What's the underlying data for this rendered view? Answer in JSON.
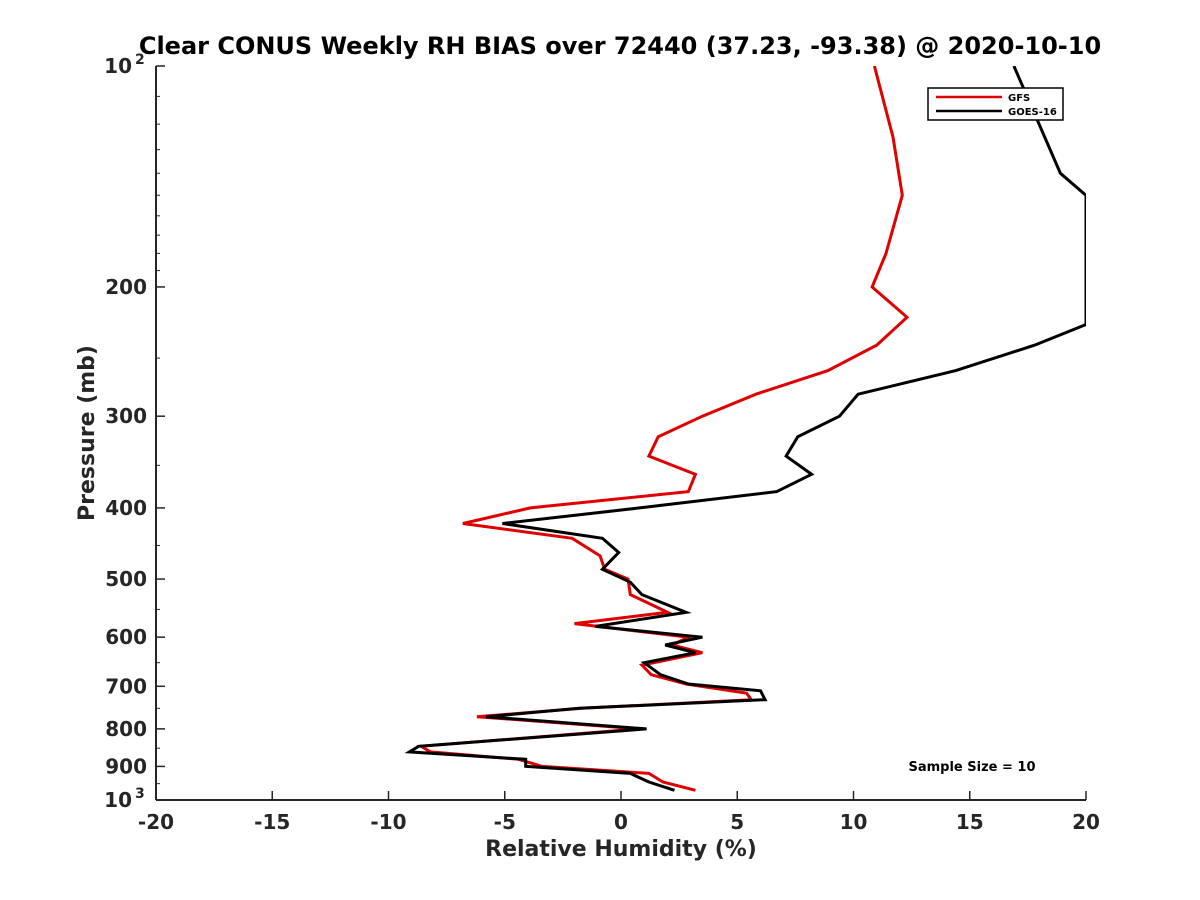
{
  "chart_data": {
    "type": "line",
    "title": "Clear CONUS Weekly RH BIAS over 72440 (37.23, -93.38) @ 2020-10-10",
    "xlabel": "Relative Humidity (%)",
    "ylabel": "Pressure (mb)",
    "xlim": [
      -20,
      20
    ],
    "ylim": [
      100,
      1000
    ],
    "y_scale": "log",
    "y_reversed": true,
    "x_ticks": [
      -20,
      -15,
      -10,
      -5,
      0,
      5,
      10,
      15,
      20
    ],
    "y_ticks": [
      {
        "value": 100,
        "label": "10",
        "sup": "2"
      },
      {
        "value": 200,
        "label": "200",
        "sup": ""
      },
      {
        "value": 300,
        "label": "300",
        "sup": ""
      },
      {
        "value": 400,
        "label": "400",
        "sup": ""
      },
      {
        "value": 500,
        "label": "500",
        "sup": ""
      },
      {
        "value": 600,
        "label": "600",
        "sup": ""
      },
      {
        "value": 700,
        "label": "700",
        "sup": ""
      },
      {
        "value": 800,
        "label": "800",
        "sup": ""
      },
      {
        "value": 900,
        "label": "900",
        "sup": ""
      },
      {
        "value": 1000,
        "label": "10",
        "sup": "3"
      }
    ],
    "legend_position": "top-right",
    "annotation": "Sample Size = 10",
    "series": [
      {
        "name": "GFS",
        "color": "#e00000",
        "points": [
          [
            10.9,
            100
          ],
          [
            11.7,
            125
          ],
          [
            12.1,
            150
          ],
          [
            11.4,
            180
          ],
          [
            10.8,
            200
          ],
          [
            12.3,
            220
          ],
          [
            11.0,
            240
          ],
          [
            8.9,
            260
          ],
          [
            5.8,
            280
          ],
          [
            3.5,
            300
          ],
          [
            1.6,
            320
          ],
          [
            1.2,
            340
          ],
          [
            3.2,
            360
          ],
          [
            2.9,
            380
          ],
          [
            -3.9,
            400
          ],
          [
            -6.8,
            420
          ],
          [
            -2.1,
            440
          ],
          [
            -0.9,
            465
          ],
          [
            -0.7,
            485
          ],
          [
            0.3,
            500
          ],
          [
            0.4,
            525
          ],
          [
            2.0,
            555
          ],
          [
            -2.0,
            575
          ],
          [
            2.9,
            600
          ],
          [
            2.2,
            615
          ],
          [
            3.5,
            630
          ],
          [
            0.9,
            655
          ],
          [
            1.3,
            675
          ],
          [
            2.8,
            695
          ],
          [
            5.4,
            715
          ],
          [
            5.6,
            730
          ],
          [
            -1.7,
            750
          ],
          [
            -6.2,
            770
          ],
          [
            0.8,
            800
          ],
          [
            -8.6,
            845
          ],
          [
            -8.2,
            860
          ],
          [
            -4.4,
            880
          ],
          [
            -3.4,
            900
          ],
          [
            1.2,
            920
          ],
          [
            1.8,
            945
          ],
          [
            3.2,
            970
          ]
        ]
      },
      {
        "name": "GOES-16",
        "color": "#000000",
        "points": [
          [
            16.9,
            100
          ],
          [
            18.9,
            140
          ],
          [
            20.0,
            150
          ],
          [
            20.0,
            225
          ],
          [
            17.8,
            240
          ],
          [
            14.4,
            260
          ],
          [
            10.2,
            280
          ],
          [
            9.4,
            300
          ],
          [
            7.6,
            320
          ],
          [
            7.1,
            340
          ],
          [
            8.2,
            360
          ],
          [
            6.7,
            380
          ],
          [
            0.8,
            400
          ],
          [
            -5.1,
            420
          ],
          [
            -0.8,
            440
          ],
          [
            -0.1,
            460
          ],
          [
            -0.8,
            485
          ],
          [
            0.4,
            505
          ],
          [
            0.9,
            525
          ],
          [
            2.8,
            555
          ],
          [
            -1.1,
            580
          ],
          [
            3.5,
            600
          ],
          [
            1.9,
            615
          ],
          [
            3.2,
            630
          ],
          [
            1.0,
            650
          ],
          [
            1.7,
            675
          ],
          [
            2.9,
            695
          ],
          [
            6.0,
            710
          ],
          [
            6.2,
            730
          ],
          [
            -1.8,
            750
          ],
          [
            -5.8,
            770
          ],
          [
            1.1,
            800
          ],
          [
            -8.7,
            845
          ],
          [
            -9.1,
            860
          ],
          [
            -4.1,
            880
          ],
          [
            -4.1,
            900
          ],
          [
            0.4,
            920
          ],
          [
            1.2,
            945
          ],
          [
            2.3,
            970
          ]
        ]
      }
    ]
  }
}
